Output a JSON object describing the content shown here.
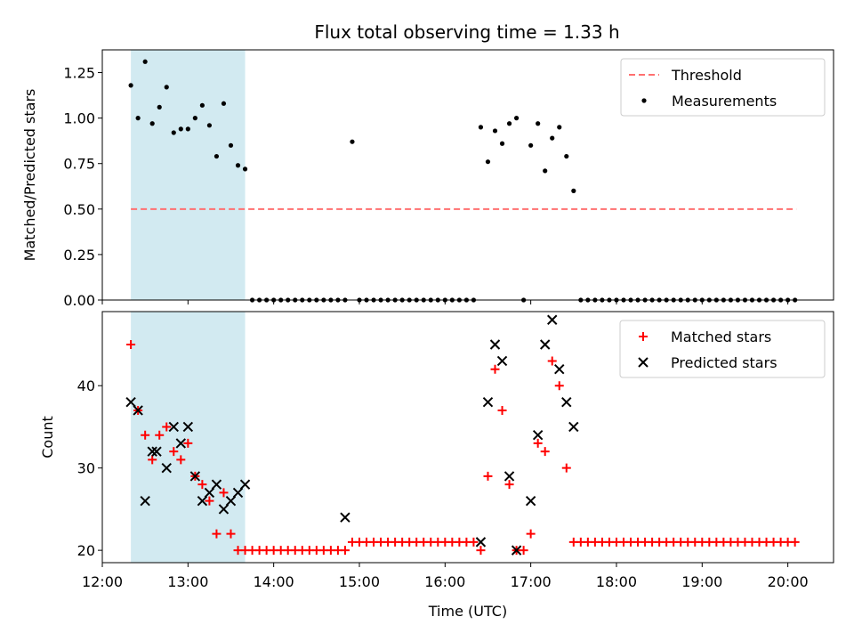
{
  "title": "Flux total observing time = 1.33 h",
  "colors": {
    "span": "#add8e6",
    "threshold": "#ff7070",
    "matched": "#ff0000",
    "predicted": "#000000",
    "measurements": "#000000"
  },
  "chart_data": [
    {
      "type": "scatter",
      "ylabel": "Matched/Predicted stars",
      "ylim": [
        0,
        1.375
      ],
      "yticks": [
        0,
        0.25,
        0.5,
        0.75,
        1.0,
        1.25
      ],
      "ytick_labels": [
        "0.00",
        "0.25",
        "0.50",
        "0.75",
        "1.00",
        "1.25"
      ],
      "xlim": [
        "12:00",
        "20:32"
      ],
      "legend_position": "top-right",
      "legend": [
        "Threshold",
        "Measurements"
      ],
      "threshold": {
        "name": "Threshold",
        "y": 0.5,
        "x_start": "12:20",
        "x_end": "20:06"
      },
      "highlight_span": [
        "12:20",
        "13:40"
      ],
      "series": [
        {
          "name": "Measurements",
          "x": [
            "12:20",
            "12:25",
            "12:30",
            "12:35",
            "12:40",
            "12:45",
            "12:50",
            "12:55",
            "13:00",
            "13:05",
            "13:10",
            "13:15",
            "13:20",
            "13:25",
            "13:30",
            "13:35",
            "13:40",
            "13:45",
            "13:50",
            "13:55",
            "14:00",
            "14:05",
            "14:10",
            "14:15",
            "14:20",
            "14:25",
            "14:30",
            "14:35",
            "14:40",
            "14:45",
            "14:50",
            "14:55",
            "15:00",
            "15:05",
            "15:10",
            "15:15",
            "15:20",
            "15:25",
            "15:30",
            "15:35",
            "15:40",
            "15:45",
            "15:50",
            "15:55",
            "16:00",
            "16:05",
            "16:10",
            "16:15",
            "16:20",
            "16:25",
            "16:30",
            "16:35",
            "16:40",
            "16:45",
            "16:50",
            "16:55",
            "17:00",
            "17:05",
            "17:10",
            "17:15",
            "17:20",
            "17:25",
            "17:30",
            "17:35",
            "17:40",
            "17:45",
            "17:50",
            "17:55",
            "18:00",
            "18:05",
            "18:10",
            "18:15",
            "18:20",
            "18:25",
            "18:30",
            "18:35",
            "18:40",
            "18:45",
            "18:50",
            "18:55",
            "19:00",
            "19:05",
            "19:10",
            "19:15",
            "19:20",
            "19:25",
            "19:30",
            "19:35",
            "19:40",
            "19:45",
            "19:50",
            "19:55",
            "20:00",
            "20:05"
          ],
          "y": [
            1.18,
            1.0,
            1.31,
            0.97,
            1.06,
            1.17,
            0.92,
            0.94,
            0.94,
            1.0,
            1.07,
            0.96,
            0.79,
            1.08,
            0.85,
            0.74,
            0.72,
            0,
            0,
            0,
            0,
            0,
            0,
            0,
            0,
            0,
            0,
            0,
            0,
            0,
            0,
            0.87,
            0,
            0,
            0,
            0,
            0,
            0,
            0,
            0,
            0,
            0,
            0,
            0,
            0,
            0,
            0,
            0,
            0,
            0.95,
            0.76,
            0.93,
            0.86,
            0.97,
            1.0,
            0,
            0.85,
            0.97,
            0.71,
            0.89,
            0.95,
            0.79,
            0.6,
            0,
            0,
            0,
            0,
            0,
            0,
            0,
            0,
            0,
            0,
            0,
            0,
            0,
            0,
            0,
            0,
            0,
            0,
            0,
            0,
            0,
            0,
            0,
            0,
            0,
            0,
            0,
            0,
            0,
            0,
            0
          ]
        }
      ]
    },
    {
      "type": "scatter",
      "ylabel": "Count",
      "xlabel": "Time (UTC)",
      "ylim": [
        18.5,
        49.0
      ],
      "yticks": [
        20,
        30,
        40
      ],
      "ytick_labels": [
        "20",
        "30",
        "40"
      ],
      "xlim": [
        "12:00",
        "20:32"
      ],
      "xticks": [
        "12:00",
        "13:00",
        "14:00",
        "15:00",
        "16:00",
        "17:00",
        "18:00",
        "19:00",
        "20:00"
      ],
      "legend_position": "top-right",
      "legend": [
        "Matched stars",
        "Predicted stars"
      ],
      "highlight_span": [
        "12:20",
        "13:40"
      ],
      "series": [
        {
          "name": "Matched stars",
          "x": [
            "12:20",
            "12:25",
            "12:30",
            "12:35",
            "12:40",
            "12:45",
            "12:50",
            "12:55",
            "13:00",
            "13:05",
            "13:10",
            "13:15",
            "13:20",
            "13:25",
            "13:30",
            "13:35",
            "13:40",
            "13:45",
            "13:50",
            "13:55",
            "14:00",
            "14:05",
            "14:10",
            "14:15",
            "14:20",
            "14:25",
            "14:30",
            "14:35",
            "14:40",
            "14:45",
            "14:50",
            "14:55",
            "15:00",
            "15:05",
            "15:10",
            "15:15",
            "15:20",
            "15:25",
            "15:30",
            "15:35",
            "15:40",
            "15:45",
            "15:50",
            "15:55",
            "16:00",
            "16:05",
            "16:10",
            "16:15",
            "16:20",
            "16:25",
            "16:30",
            "16:35",
            "16:40",
            "16:45",
            "16:50",
            "16:55",
            "17:00",
            "17:05",
            "17:10",
            "17:15",
            "17:20",
            "17:25",
            "17:30",
            "17:35",
            "17:40",
            "17:45",
            "17:50",
            "17:55",
            "18:00",
            "18:05",
            "18:10",
            "18:15",
            "18:20",
            "18:25",
            "18:30",
            "18:35",
            "18:40",
            "18:45",
            "18:50",
            "18:55",
            "19:00",
            "19:05",
            "19:10",
            "19:15",
            "19:20",
            "19:25",
            "19:30",
            "19:35",
            "19:40",
            "19:45",
            "19:50",
            "19:55",
            "20:00",
            "20:05"
          ],
          "y": [
            45,
            37,
            34,
            31,
            34,
            35,
            32,
            31,
            33,
            29,
            28,
            26,
            22,
            27,
            22,
            20,
            20,
            20,
            20,
            20,
            20,
            20,
            20,
            20,
            20,
            20,
            20,
            20,
            20,
            20,
            20,
            21,
            21,
            21,
            21,
            21,
            21,
            21,
            21,
            21,
            21,
            21,
            21,
            21,
            21,
            21,
            21,
            21,
            21,
            20,
            29,
            42,
            37,
            28,
            20,
            20,
            22,
            33,
            32,
            43,
            40,
            30,
            21,
            21,
            21,
            21,
            21,
            21,
            21,
            21,
            21,
            21,
            21,
            21,
            21,
            21,
            21,
            21,
            21,
            21,
            21,
            21,
            21,
            21,
            21,
            21,
            21,
            21,
            21,
            21,
            21,
            21,
            21,
            21
          ]
        },
        {
          "name": "Predicted stars",
          "x": [
            "12:20",
            "12:25",
            "12:30",
            "12:35",
            "12:38",
            "12:45",
            "12:50",
            "12:55",
            "13:00",
            "13:05",
            "13:10",
            "13:15",
            "13:20",
            "13:25",
            "13:30",
            "13:35",
            "13:40",
            "14:50",
            "16:25",
            "16:30",
            "16:35",
            "16:40",
            "16:45",
            "16:50",
            "17:00",
            "17:05",
            "17:10",
            "17:15",
            "17:20",
            "17:25",
            "17:30"
          ],
          "y": [
            38,
            37,
            26,
            32,
            32,
            30,
            35,
            33,
            35,
            29,
            26,
            27,
            28,
            25,
            26,
            27,
            28,
            24,
            21,
            38,
            45,
            43,
            29,
            20,
            26,
            34,
            45,
            48,
            42,
            38,
            35
          ]
        }
      ]
    }
  ]
}
